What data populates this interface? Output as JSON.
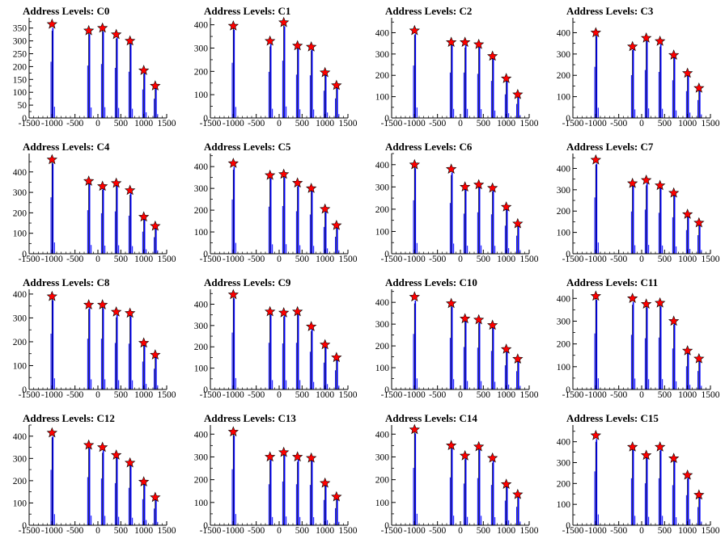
{
  "colors": {
    "histogram": "#0000ff",
    "peak_marker": "#ff0000",
    "axis": "#000000"
  },
  "chart_data": [
    {
      "type": "bar",
      "title": "Address Levels: C0",
      "xlim": [
        -1500,
        1500
      ],
      "ylim": [
        0,
        390
      ],
      "yticks": [
        0,
        50,
        100,
        150,
        200,
        250,
        300,
        350
      ],
      "xticks": [
        -1500,
        -1000,
        -500,
        0,
        500,
        1000,
        1500
      ],
      "peaks": [
        {
          "x": -1000,
          "y": 365
        },
        {
          "x": -200,
          "y": 340
        },
        {
          "x": 100,
          "y": 350
        },
        {
          "x": 400,
          "y": 325
        },
        {
          "x": 700,
          "y": 300
        },
        {
          "x": 1000,
          "y": 185
        },
        {
          "x": 1250,
          "y": 125
        }
      ]
    },
    {
      "type": "bar",
      "title": "Address Levels: C1",
      "xlim": [
        -1500,
        1500
      ],
      "ylim": [
        0,
        430
      ],
      "yticks": [
        0,
        100,
        200,
        300,
        400
      ],
      "xticks": [
        -1500,
        -1000,
        -500,
        0,
        500,
        1000,
        1500
      ],
      "peaks": [
        {
          "x": -1000,
          "y": 395
        },
        {
          "x": -200,
          "y": 330
        },
        {
          "x": 100,
          "y": 410
        },
        {
          "x": 400,
          "y": 310
        },
        {
          "x": 700,
          "y": 305
        },
        {
          "x": 1000,
          "y": 195
        },
        {
          "x": 1250,
          "y": 140
        }
      ]
    },
    {
      "type": "bar",
      "title": "Address Levels: C2",
      "xlim": [
        -1500,
        1500
      ],
      "ylim": [
        0,
        470
      ],
      "yticks": [
        0,
        100,
        200,
        300,
        400
      ],
      "xticks": [
        -1500,
        -1000,
        -500,
        0,
        500,
        1000,
        1500
      ],
      "peaks": [
        {
          "x": -1000,
          "y": 410
        },
        {
          "x": -200,
          "y": 355
        },
        {
          "x": 100,
          "y": 355
        },
        {
          "x": 400,
          "y": 345
        },
        {
          "x": 700,
          "y": 290
        },
        {
          "x": 1000,
          "y": 185
        },
        {
          "x": 1250,
          "y": 110
        }
      ]
    },
    {
      "type": "bar",
      "title": "Address Levels: C3",
      "xlim": [
        -1500,
        1500
      ],
      "ylim": [
        0,
        470
      ],
      "yticks": [
        0,
        100,
        200,
        300,
        400
      ],
      "xticks": [
        -1500,
        -1000,
        -500,
        0,
        500,
        1000,
        1500
      ],
      "peaks": [
        {
          "x": -1000,
          "y": 400
        },
        {
          "x": -200,
          "y": 335
        },
        {
          "x": 100,
          "y": 375
        },
        {
          "x": 400,
          "y": 360
        },
        {
          "x": 700,
          "y": 295
        },
        {
          "x": 1000,
          "y": 210
        },
        {
          "x": 1250,
          "y": 140
        }
      ]
    },
    {
      "type": "bar",
      "title": "Address Levels: C4",
      "xlim": [
        -1500,
        1500
      ],
      "ylim": [
        0,
        490
      ],
      "yticks": [
        0,
        100,
        200,
        300,
        400
      ],
      "xticks": [
        -1500,
        -1000,
        -500,
        0,
        500,
        1000,
        1500
      ],
      "peaks": [
        {
          "x": -1000,
          "y": 460
        },
        {
          "x": -200,
          "y": 355
        },
        {
          "x": 100,
          "y": 330
        },
        {
          "x": 400,
          "y": 345
        },
        {
          "x": 700,
          "y": 310
        },
        {
          "x": 1000,
          "y": 180
        },
        {
          "x": 1250,
          "y": 135
        }
      ]
    },
    {
      "type": "bar",
      "title": "Address Levels: C5",
      "xlim": [
        -1500,
        1500
      ],
      "ylim": [
        0,
        460
      ],
      "yticks": [
        0,
        100,
        200,
        300,
        400
      ],
      "xticks": [
        -1500,
        -1000,
        -500,
        0,
        500,
        1000,
        1500
      ],
      "peaks": [
        {
          "x": -1000,
          "y": 415
        },
        {
          "x": -200,
          "y": 360
        },
        {
          "x": 100,
          "y": 365
        },
        {
          "x": 400,
          "y": 325
        },
        {
          "x": 700,
          "y": 300
        },
        {
          "x": 1000,
          "y": 205
        },
        {
          "x": 1250,
          "y": 130
        }
      ]
    },
    {
      "type": "bar",
      "title": "Address Levels: C6",
      "xlim": [
        -1500,
        1500
      ],
      "ylim": [
        0,
        450
      ],
      "yticks": [
        0,
        100,
        200,
        300,
        400
      ],
      "xticks": [
        -1500,
        -1000,
        -500,
        0,
        500,
        1000,
        1500
      ],
      "peaks": [
        {
          "x": -1000,
          "y": 400
        },
        {
          "x": -200,
          "y": 380
        },
        {
          "x": 100,
          "y": 300
        },
        {
          "x": 400,
          "y": 310
        },
        {
          "x": 700,
          "y": 295
        },
        {
          "x": 1000,
          "y": 210
        },
        {
          "x": 1250,
          "y": 135
        }
      ]
    },
    {
      "type": "bar",
      "title": "Address Levels: C7",
      "xlim": [
        -1500,
        1500
      ],
      "ylim": [
        0,
        470
      ],
      "yticks": [
        0,
        100,
        200,
        300,
        400
      ],
      "xticks": [
        -1500,
        -1000,
        -500,
        0,
        500,
        1000,
        1500
      ],
      "peaks": [
        {
          "x": -1000,
          "y": 440
        },
        {
          "x": -200,
          "y": 330
        },
        {
          "x": 100,
          "y": 345
        },
        {
          "x": 400,
          "y": 320
        },
        {
          "x": 700,
          "y": 285
        },
        {
          "x": 1000,
          "y": 185
        },
        {
          "x": 1250,
          "y": 145
        }
      ]
    },
    {
      "type": "bar",
      "title": "Address Levels: C8",
      "xlim": [
        -1500,
        1500
      ],
      "ylim": [
        0,
        420
      ],
      "yticks": [
        0,
        100,
        200,
        300,
        400
      ],
      "xticks": [
        -1500,
        -1000,
        -500,
        0,
        500,
        1000,
        1500
      ],
      "peaks": [
        {
          "x": -1000,
          "y": 390
        },
        {
          "x": -200,
          "y": 355
        },
        {
          "x": 100,
          "y": 355
        },
        {
          "x": 400,
          "y": 325
        },
        {
          "x": 700,
          "y": 320
        },
        {
          "x": 1000,
          "y": 195
        },
        {
          "x": 1250,
          "y": 145
        }
      ]
    },
    {
      "type": "bar",
      "title": "Address Levels: C9",
      "xlim": [
        -1500,
        1500
      ],
      "ylim": [
        0,
        470
      ],
      "yticks": [
        0,
        100,
        200,
        300,
        400
      ],
      "xticks": [
        -1500,
        -1000,
        -500,
        0,
        500,
        1000,
        1500
      ],
      "peaks": [
        {
          "x": -1000,
          "y": 445
        },
        {
          "x": -200,
          "y": 365
        },
        {
          "x": 100,
          "y": 360
        },
        {
          "x": 400,
          "y": 365
        },
        {
          "x": 700,
          "y": 295
        },
        {
          "x": 1000,
          "y": 210
        },
        {
          "x": 1250,
          "y": 150
        }
      ]
    },
    {
      "type": "bar",
      "title": "Address Levels: C10",
      "xlim": [
        -1500,
        1500
      ],
      "ylim": [
        0,
        460
      ],
      "yticks": [
        0,
        100,
        200,
        300,
        400
      ],
      "xticks": [
        -1500,
        -1000,
        -500,
        0,
        500,
        1000,
        1500
      ],
      "peaks": [
        {
          "x": -1000,
          "y": 425
        },
        {
          "x": -200,
          "y": 395
        },
        {
          "x": 100,
          "y": 325
        },
        {
          "x": 400,
          "y": 320
        },
        {
          "x": 700,
          "y": 295
        },
        {
          "x": 1000,
          "y": 185
        },
        {
          "x": 1250,
          "y": 140
        }
      ]
    },
    {
      "type": "bar",
      "title": "Address Levels: C11",
      "xlim": [
        -1500,
        1500
      ],
      "ylim": [
        0,
        440
      ],
      "yticks": [
        0,
        100,
        200,
        300,
        400
      ],
      "xticks": [
        -1500,
        -1000,
        -500,
        0,
        500,
        1000,
        1500
      ],
      "peaks": [
        {
          "x": -1000,
          "y": 410
        },
        {
          "x": -200,
          "y": 400
        },
        {
          "x": 100,
          "y": 375
        },
        {
          "x": 400,
          "y": 380
        },
        {
          "x": 700,
          "y": 300
        },
        {
          "x": 1000,
          "y": 170
        },
        {
          "x": 1250,
          "y": 135
        }
      ]
    },
    {
      "type": "bar",
      "title": "Address Levels: C12",
      "xlim": [
        -1500,
        1500
      ],
      "ylim": [
        0,
        450
      ],
      "yticks": [
        0,
        100,
        200,
        300,
        400
      ],
      "xticks": [
        -1500,
        -1000,
        -500,
        0,
        500,
        1000,
        1500
      ],
      "peaks": [
        {
          "x": -1000,
          "y": 415
        },
        {
          "x": -200,
          "y": 360
        },
        {
          "x": 100,
          "y": 350
        },
        {
          "x": 400,
          "y": 315
        },
        {
          "x": 700,
          "y": 280
        },
        {
          "x": 1000,
          "y": 195
        },
        {
          "x": 1250,
          "y": 125
        }
      ]
    },
    {
      "type": "bar",
      "title": "Address Levels: C13",
      "xlim": [
        -1500,
        1500
      ],
      "ylim": [
        0,
        440
      ],
      "yticks": [
        0,
        100,
        200,
        300,
        400
      ],
      "xticks": [
        -1500,
        -1000,
        -500,
        0,
        500,
        1000,
        1500
      ],
      "peaks": [
        {
          "x": -1000,
          "y": 410
        },
        {
          "x": -200,
          "y": 300
        },
        {
          "x": 100,
          "y": 320
        },
        {
          "x": 400,
          "y": 300
        },
        {
          "x": 700,
          "y": 295
        },
        {
          "x": 1000,
          "y": 185
        },
        {
          "x": 1250,
          "y": 125
        }
      ]
    },
    {
      "type": "bar",
      "title": "Address Levels: C14",
      "xlim": [
        -1500,
        1500
      ],
      "ylim": [
        0,
        440
      ],
      "yticks": [
        0,
        100,
        200,
        300,
        400
      ],
      "xticks": [
        -1500,
        -1000,
        -500,
        0,
        500,
        1000,
        1500
      ],
      "peaks": [
        {
          "x": -1000,
          "y": 420
        },
        {
          "x": -200,
          "y": 350
        },
        {
          "x": 100,
          "y": 305
        },
        {
          "x": 400,
          "y": 345
        },
        {
          "x": 700,
          "y": 295
        },
        {
          "x": 1000,
          "y": 180
        },
        {
          "x": 1250,
          "y": 135
        }
      ]
    },
    {
      "type": "bar",
      "title": "Address Levels: C15",
      "xlim": [
        -1500,
        1500
      ],
      "ylim": [
        0,
        480
      ],
      "yticks": [
        0,
        100,
        200,
        300,
        400
      ],
      "xticks": [
        -1500,
        -1000,
        -500,
        0,
        500,
        1000,
        1500
      ],
      "peaks": [
        {
          "x": -1000,
          "y": 430
        },
        {
          "x": -200,
          "y": 375
        },
        {
          "x": 100,
          "y": 335
        },
        {
          "x": 400,
          "y": 375
        },
        {
          "x": 700,
          "y": 320
        },
        {
          "x": 1000,
          "y": 240
        },
        {
          "x": 1250,
          "y": 145
        }
      ]
    }
  ]
}
